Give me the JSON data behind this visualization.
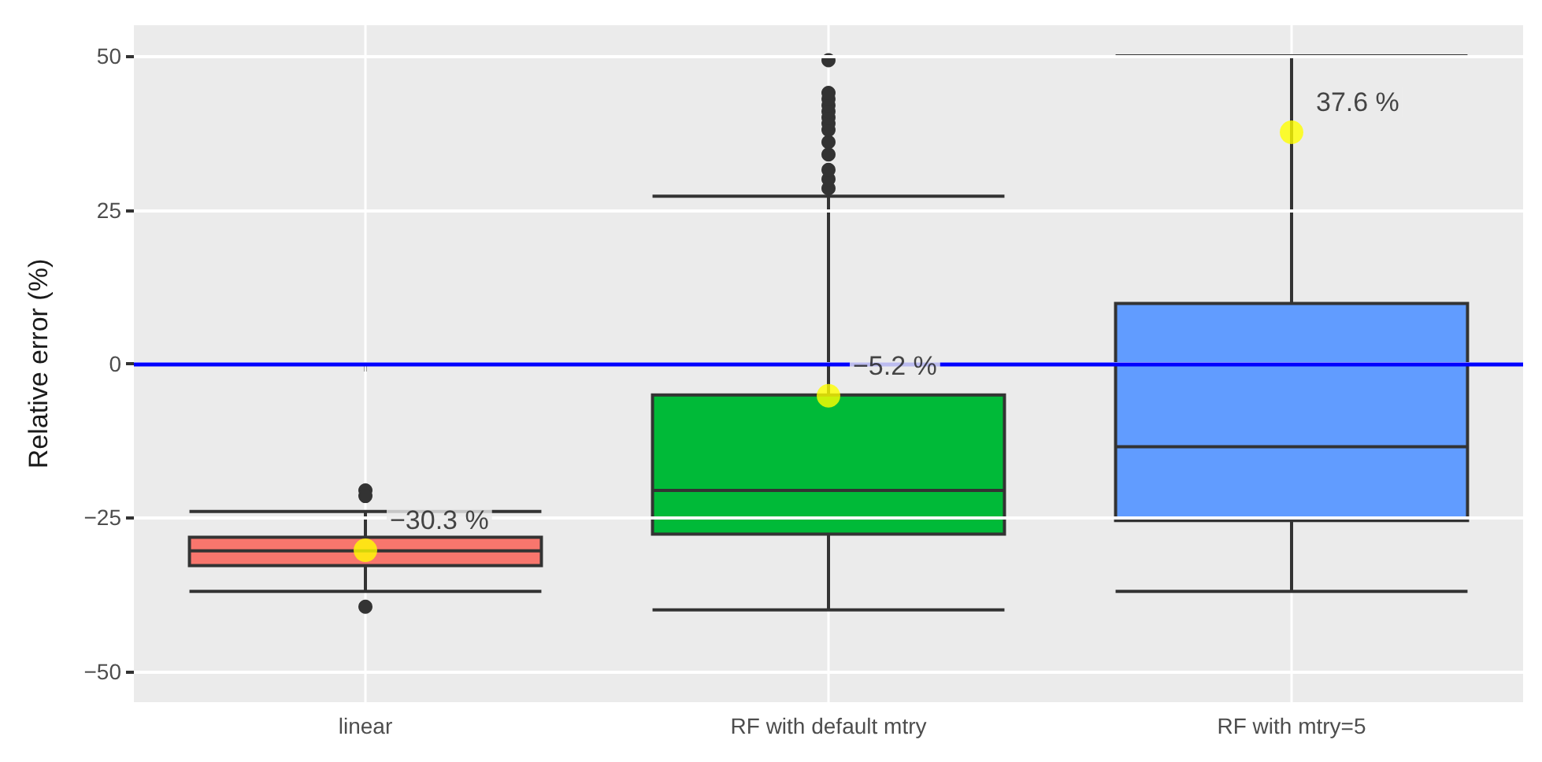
{
  "chart_data": {
    "type": "box",
    "ylabel": "Relative error (%)",
    "categories": [
      "linear",
      "RF with default mtry",
      "RF with mtry=5"
    ],
    "ylim": [
      -55,
      55
    ],
    "yticks": [
      -50,
      -25,
      0,
      25,
      50
    ],
    "grid": true,
    "series": [
      {
        "type": "box",
        "colors": [
          "#f8766d",
          "#00ba38",
          "#619cff"
        ],
        "boxes": [
          {
            "low": -37,
            "q1": -32.8,
            "median": -30.4,
            "q3": -28.2,
            "high": -24,
            "outliers": [
              -20.6,
              -21.5,
              -39.5
            ]
          },
          {
            "low": -40,
            "q1": -27.7,
            "median": -20.6,
            "q3": -5.1,
            "high": 27.2,
            "outliers": [
              28.5,
              30,
              31.5,
              34,
              36,
              38,
              39,
              40,
              41,
              42,
              43,
              44,
              49.3
            ]
          },
          {
            "low": -37,
            "q1": -25.5,
            "median": -13.5,
            "q3": 9.8,
            "high": 50
          }
        ]
      },
      {
        "type": "scatter",
        "color": "#ffff00",
        "marker": "circle",
        "x": [
          "linear",
          "RF with default mtry",
          "RF with mtry=5"
        ],
        "values": [
          -30.3,
          -5.2,
          37.6
        ],
        "value_labels": [
          "−30.3 %",
          "−5.2 %",
          "37.6 %"
        ]
      }
    ],
    "ref_lines": [
      {
        "axis": "y",
        "value": 0,
        "color": "#0000ff",
        "line_style": "solid"
      }
    ]
  }
}
